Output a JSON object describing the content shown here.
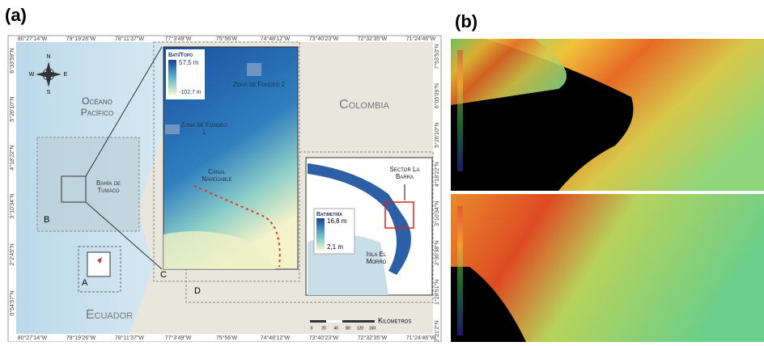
{
  "panel_a": {
    "label": "(a)",
    "lon_labels": [
      "80°27'14\"W",
      "79°19'26\"W",
      "78°11'37\"W",
      "77°3'49\"W",
      "75°56'W",
      "74°48'12\"W",
      "73°40'23\"W",
      "72°32'35\"W",
      "71°24'46\"W"
    ],
    "lat_labels_left": [
      "6°33'59\"N",
      "5°26'10\"N",
      "4°18'22\"N",
      "3°10'34\"N",
      "2°2'45\"N",
      "0°54'57\"N"
    ],
    "lat_labels_right": [
      "7°53'53\"N",
      "6°05'09\"N",
      "5°26'10\"N",
      "4°18'22\"N",
      "3°10'34\"N",
      "2°36'38\"N",
      "1°28'51\"N",
      "0°21'2\"N"
    ],
    "compass": {
      "n": "N",
      "s": "S",
      "e": "E",
      "w": "W"
    },
    "regions": {
      "ocean": "Océano Pacífico",
      "colombia": "Colombia",
      "ecuador": "Ecuador",
      "bay": "Bahía de Tumaco"
    },
    "box_labels": {
      "a": "A",
      "b": "B",
      "c": "C",
      "d": "D"
    },
    "inset_c": {
      "legend_title": "Bati/Topo",
      "max": "57,5 m",
      "min": "-102,7 m",
      "zone2": "Zona de Fondeo 2",
      "zone1": "Zona de Fondeo 1",
      "channel": "Canal Navegable"
    },
    "inset_d": {
      "legend_title": "Batimetría",
      "max": "16,8 m",
      "min": "2,1 m",
      "sector": "Sector La Barra",
      "island": "Isla El Morro"
    },
    "scale": {
      "title": "Kilómetros",
      "marks": [
        "0",
        "20",
        "40",
        "80",
        "120",
        "160"
      ]
    }
  },
  "panel_b": {
    "label": "(b)"
  }
}
